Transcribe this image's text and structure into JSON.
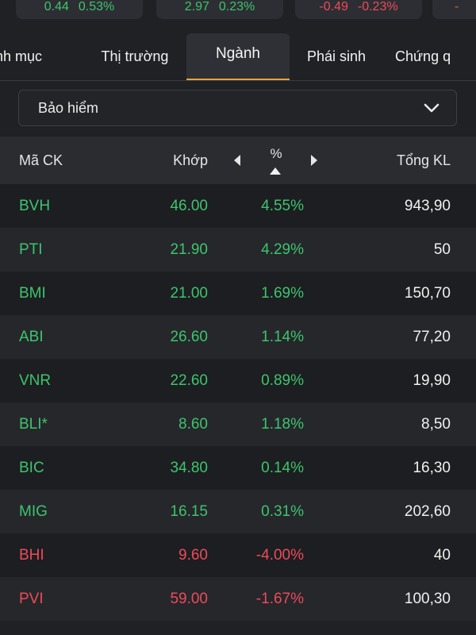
{
  "index_cards": [
    {
      "values": [
        "0.44",
        "0.53%"
      ],
      "trend": "up"
    },
    {
      "values": [
        "2.97",
        "0.23%"
      ],
      "trend": "up"
    },
    {
      "values": [
        "-0.49",
        "-0.23%"
      ],
      "trend": "down"
    },
    {
      "values": [
        "-"
      ],
      "trend": "down"
    }
  ],
  "tabs": [
    {
      "label": "nh mục",
      "active": false
    },
    {
      "label": "Thị trường",
      "active": false
    },
    {
      "label": "Ngành",
      "active": true
    },
    {
      "label": "Phái sinh",
      "active": false
    },
    {
      "label": "Chứng q",
      "active": false
    }
  ],
  "sector_select": {
    "value": "Bảo hiểm",
    "icon": "chevron-down-icon"
  },
  "table": {
    "headers": {
      "symbol": "Mã CK",
      "price": "Khớp",
      "percent": "%",
      "volume": "Tổng KL"
    },
    "rows": [
      {
        "symbol": "BVH",
        "price": "46.00",
        "percent": "4.55%",
        "volume": "943,90",
        "trend": "up"
      },
      {
        "symbol": "PTI",
        "price": "21.90",
        "percent": "4.29%",
        "volume": "50",
        "trend": "up"
      },
      {
        "symbol": "BMI",
        "price": "21.00",
        "percent": "1.69%",
        "volume": "150,70",
        "trend": "up"
      },
      {
        "symbol": "ABI",
        "price": "26.60",
        "percent": "1.14%",
        "volume": "77,20",
        "trend": "up"
      },
      {
        "symbol": "VNR",
        "price": "22.60",
        "percent": "0.89%",
        "volume": "19,90",
        "trend": "up"
      },
      {
        "symbol": "BLI*",
        "price": "8.60",
        "percent": "1.18%",
        "volume": "8,50",
        "trend": "up"
      },
      {
        "symbol": "BIC",
        "price": "34.80",
        "percent": "0.14%",
        "volume": "16,30",
        "trend": "up"
      },
      {
        "symbol": "MIG",
        "price": "16.15",
        "percent": "0.31%",
        "volume": "202,60",
        "trend": "up"
      },
      {
        "symbol": "BHI",
        "price": "9.60",
        "percent": "-4.00%",
        "volume": "40",
        "trend": "down"
      },
      {
        "symbol": "PVI",
        "price": "59.00",
        "percent": "-1.67%",
        "volume": "100,30",
        "trend": "down"
      }
    ]
  },
  "colors": {
    "up": "#3ec46d",
    "down": "#ee4a5a",
    "accent": "#e8a33a"
  }
}
